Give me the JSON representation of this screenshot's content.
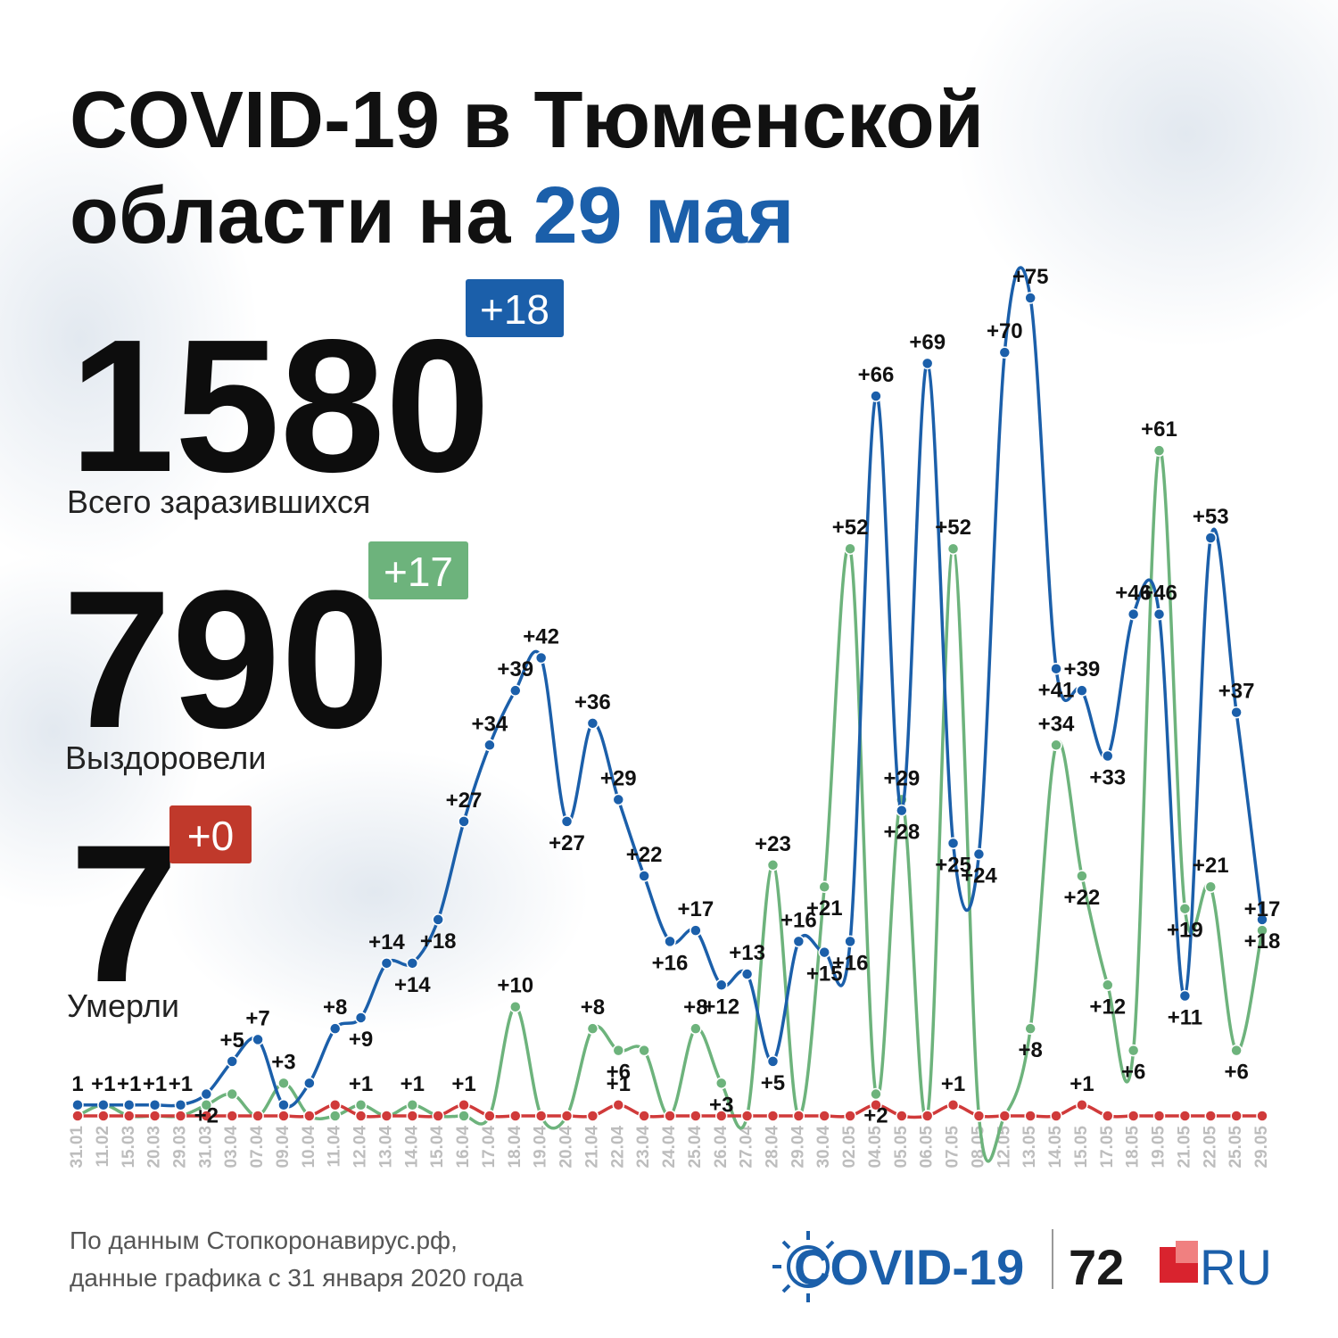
{
  "header": {
    "title_line1": "COVID-19 в Тюменской",
    "title_line2": "области на",
    "title_date": "29 мая"
  },
  "stats": [
    {
      "number": "1580",
      "change": "+18",
      "caption": "Всего заразившихся"
    },
    {
      "number": "790",
      "change": "+17",
      "caption": "Выздоровели"
    },
    {
      "number": "7",
      "change": "+0",
      "caption": "Умерли"
    }
  ],
  "chart_data": {
    "type": "line",
    "categories": [
      "31.01",
      "11.02",
      "15.03",
      "20.03",
      "29.03",
      "31.03",
      "03.04",
      "07.04",
      "09.04",
      "10.04",
      "11.04",
      "12.04",
      "13.04",
      "14.04",
      "15.04",
      "16.04",
      "17.04",
      "18.04",
      "19.04",
      "20.04",
      "21.04",
      "22.04",
      "23.04",
      "24.04",
      "25.04",
      "26.04",
      "27.04",
      "28.04",
      "29.04",
      "30.04",
      "02.05",
      "04.05",
      "05.05",
      "06.05",
      "07.05",
      "08.05",
      "12.05",
      "13.05",
      "14.05",
      "15.05",
      "17.05",
      "18.05",
      "19.05",
      "21.05",
      "22.05",
      "25.05",
      "29.05"
    ],
    "ylim": [
      0,
      75
    ],
    "series": [
      {
        "color": "#6db37c",
        "values": [
          0,
          1,
          0,
          0,
          0,
          1,
          2,
          0,
          3,
          0,
          0,
          1,
          0,
          1,
          0,
          0,
          0,
          10,
          0,
          0,
          8,
          6,
          6,
          0,
          8,
          3,
          0,
          23,
          0,
          21,
          52,
          2,
          29,
          0,
          52,
          0,
          0,
          8,
          34,
          22,
          12,
          6,
          61,
          19,
          21,
          6,
          17
        ],
        "value_labels": [
          null,
          null,
          null,
          null,
          null,
          null,
          null,
          null,
          "+3",
          null,
          null,
          "+1",
          null,
          "+1",
          null,
          null,
          null,
          "+10",
          null,
          null,
          "+8",
          "+6",
          null,
          null,
          "+8",
          "+3",
          null,
          "+23",
          null,
          "+21",
          "+52",
          "+2",
          "+29",
          null,
          "+52",
          null,
          null,
          "+8",
          "+34",
          "+22",
          "+12",
          "+6",
          "+61",
          "+19",
          "+21",
          "+6",
          "+17"
        ]
      },
      {
        "color": "#1b5faa",
        "values": [
          1,
          1,
          1,
          1,
          1,
          2,
          5,
          7,
          1,
          3,
          8,
          9,
          14,
          14,
          18,
          27,
          34,
          39,
          42,
          27,
          36,
          29,
          22,
          16,
          17,
          12,
          13,
          5,
          16,
          15,
          16,
          66,
          28,
          69,
          25,
          24,
          70,
          75,
          41,
          39,
          33,
          46,
          46,
          11,
          53,
          37,
          18
        ],
        "value_labels": [
          "1",
          "+1",
          "+1",
          "+1",
          "+1",
          "+2",
          "+5",
          "+7",
          null,
          null,
          "+8",
          "+9",
          "+14",
          "+14",
          "+18",
          "+27",
          "+34",
          "+39",
          "+42",
          "+27",
          "+36",
          "+29",
          "+22",
          "+16",
          "+17",
          "+12",
          "+13",
          "+5",
          "+16",
          "+15",
          "+16",
          "+66",
          "+28",
          "+69",
          "+25",
          "+24",
          "+70",
          "+75",
          "+41",
          "+39",
          "+33",
          "+46",
          "+46",
          "+11",
          "+53",
          "+37",
          "+18"
        ]
      },
      {
        "color": "#d03a3a",
        "values": [
          0,
          0,
          0,
          0,
          0,
          0,
          0,
          0,
          0,
          0,
          1,
          0,
          0,
          0,
          0,
          1,
          0,
          0,
          0,
          0,
          0,
          1,
          0,
          0,
          0,
          0,
          0,
          0,
          0,
          0,
          0,
          1,
          0,
          0,
          1,
          0,
          0,
          0,
          0,
          1,
          0,
          0,
          0,
          0,
          0,
          0,
          0
        ],
        "value_labels": [
          null,
          null,
          null,
          null,
          null,
          null,
          null,
          null,
          null,
          null,
          null,
          null,
          null,
          null,
          null,
          "+1",
          null,
          null,
          null,
          null,
          null,
          "+1",
          null,
          null,
          null,
          null,
          null,
          null,
          null,
          null,
          null,
          null,
          null,
          null,
          "+1",
          null,
          null,
          null,
          null,
          "+1",
          null,
          null,
          null,
          null,
          null,
          null,
          null
        ]
      }
    ]
  },
  "footer": {
    "line1": "По данным Стопкоронавирус.рф,",
    "line2": "данные графика с 31 января 2020 года"
  },
  "logo": {
    "covid": "COVID-19",
    "num": "72",
    "ru": "RU"
  }
}
